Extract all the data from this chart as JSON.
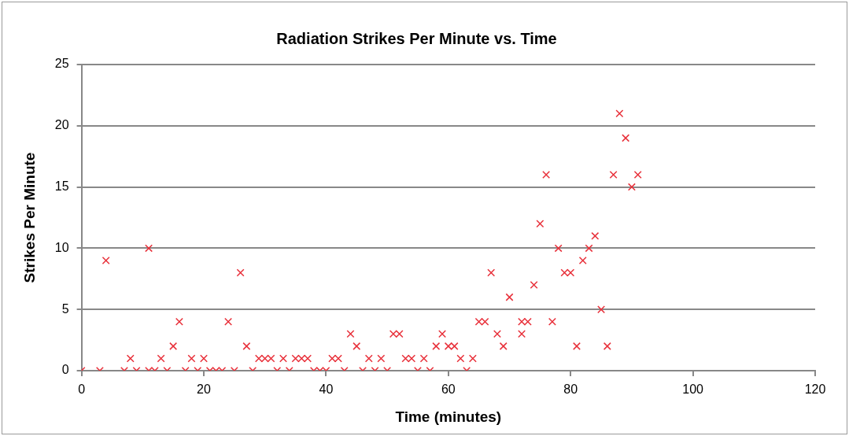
{
  "chart_data": {
    "type": "scatter",
    "title": "Radiation Strikes Per Minute vs. Time",
    "xlabel": "Time (minutes)",
    "ylabel": "Strikes Per Minute",
    "x": [
      0,
      3,
      4,
      7,
      8,
      9,
      11,
      11,
      12,
      13,
      14,
      15,
      16,
      17,
      18,
      19,
      20,
      21,
      22,
      23,
      24,
      25,
      26,
      27,
      28,
      29,
      30,
      31,
      32,
      33,
      34,
      35,
      36,
      37,
      38,
      39,
      40,
      41,
      42,
      43,
      44,
      45,
      46,
      47,
      48,
      49,
      50,
      51,
      52,
      53,
      54,
      55,
      56,
      57,
      58,
      59,
      60,
      61,
      62,
      63,
      64,
      65,
      66,
      67,
      68,
      69,
      70,
      72,
      72,
      73,
      74,
      75,
      76,
      77,
      78,
      79,
      80,
      81,
      82,
      83,
      84,
      85,
      86,
      87,
      88,
      89,
      90,
      91
    ],
    "values": [
      0,
      0,
      9,
      0,
      1,
      0,
      10,
      0,
      0,
      1,
      0,
      2,
      4,
      0,
      1,
      0,
      1,
      0,
      0,
      0,
      4,
      0,
      8,
      2,
      0,
      1,
      1,
      1,
      0,
      1,
      0,
      1,
      1,
      1,
      0,
      0,
      0,
      1,
      1,
      0,
      3,
      2,
      0,
      1,
      0,
      1,
      0,
      3,
      3,
      1,
      1,
      0,
      1,
      0,
      2,
      3,
      2,
      2,
      1,
      0,
      1,
      4,
      4,
      8,
      3,
      2,
      6,
      3,
      4,
      4,
      7,
      12,
      16,
      4,
      10,
      8,
      8,
      2,
      9,
      10,
      11,
      5,
      2,
      16,
      21,
      19,
      15,
      16
    ],
    "color": "#e8303a",
    "marker": "cross",
    "xlim": [
      0,
      120
    ],
    "xticks": [
      0,
      20,
      40,
      60,
      80,
      100,
      120
    ],
    "ylim": [
      0,
      25
    ],
    "yticks": [
      0,
      5,
      10,
      15,
      20,
      25
    ],
    "grid": "y",
    "legend": false
  }
}
